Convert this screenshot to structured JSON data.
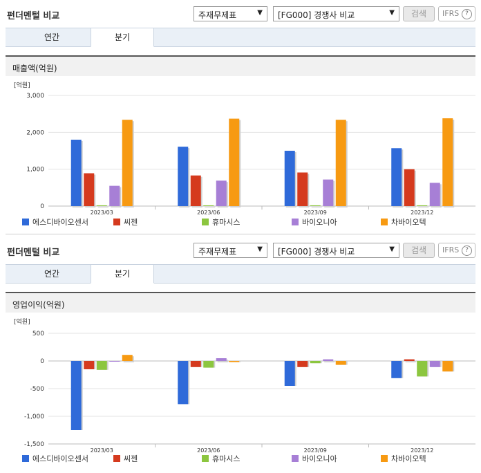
{
  "controls": {
    "title": "펀더멘털 비교",
    "select1": "주재무제표",
    "select2": "[FG000] 경쟁사 비교",
    "search": "검색",
    "ifrs": "IFRS",
    "help": "?"
  },
  "tabs": [
    "연간",
    "분기"
  ],
  "active_tab": "분기",
  "colors": {
    "에스디바이오센서": "#2f6ad9",
    "씨젠": "#d53a1e",
    "휴마시스": "#8cc63f",
    "바이오니아": "#a77fd6",
    "차바이오텍": "#f79a12"
  },
  "chart_data": [
    {
      "type": "bar",
      "title": "매출액(억원)",
      "unit": "[억원]",
      "categories": [
        "2023/03",
        "2023/06",
        "2023/09",
        "2023/12"
      ],
      "ylim": [
        0,
        3000
      ],
      "yticks": [
        0,
        1000,
        2000,
        3000
      ],
      "ytick_labels": [
        "0",
        "1,000",
        "2,000",
        "3,000"
      ],
      "series": [
        {
          "name": "에스디바이오센서",
          "values": [
            1800,
            1610,
            1500,
            1570
          ]
        },
        {
          "name": "씨젠",
          "values": [
            890,
            830,
            910,
            1000
          ]
        },
        {
          "name": "휴마시스",
          "values": [
            20,
            20,
            20,
            20
          ]
        },
        {
          "name": "바이오니아",
          "values": [
            550,
            690,
            720,
            630
          ]
        },
        {
          "name": "차바이오텍",
          "values": [
            2340,
            2370,
            2340,
            2380
          ]
        }
      ]
    },
    {
      "type": "bar",
      "title": "영업이익(억원)",
      "unit": "[억원]",
      "categories": [
        "2023/03",
        "2023/06",
        "2023/09",
        "2023/12"
      ],
      "ylim": [
        -1500,
        500
      ],
      "yticks": [
        -1500,
        -1000,
        -500,
        0,
        500
      ],
      "ytick_labels": [
        "-1,500",
        "-1,000",
        "-500",
        "0",
        "500"
      ],
      "series": [
        {
          "name": "에스디바이오센서",
          "values": [
            -1250,
            -780,
            -450,
            -310
          ]
        },
        {
          "name": "씨젠",
          "values": [
            -150,
            -110,
            -110,
            30
          ]
        },
        {
          "name": "휴마시스",
          "values": [
            -160,
            -120,
            -40,
            -280
          ]
        },
        {
          "name": "바이오니아",
          "values": [
            -10,
            50,
            30,
            -110
          ]
        },
        {
          "name": "차바이오텍",
          "values": [
            110,
            -20,
            -70,
            -190
          ]
        }
      ]
    }
  ]
}
